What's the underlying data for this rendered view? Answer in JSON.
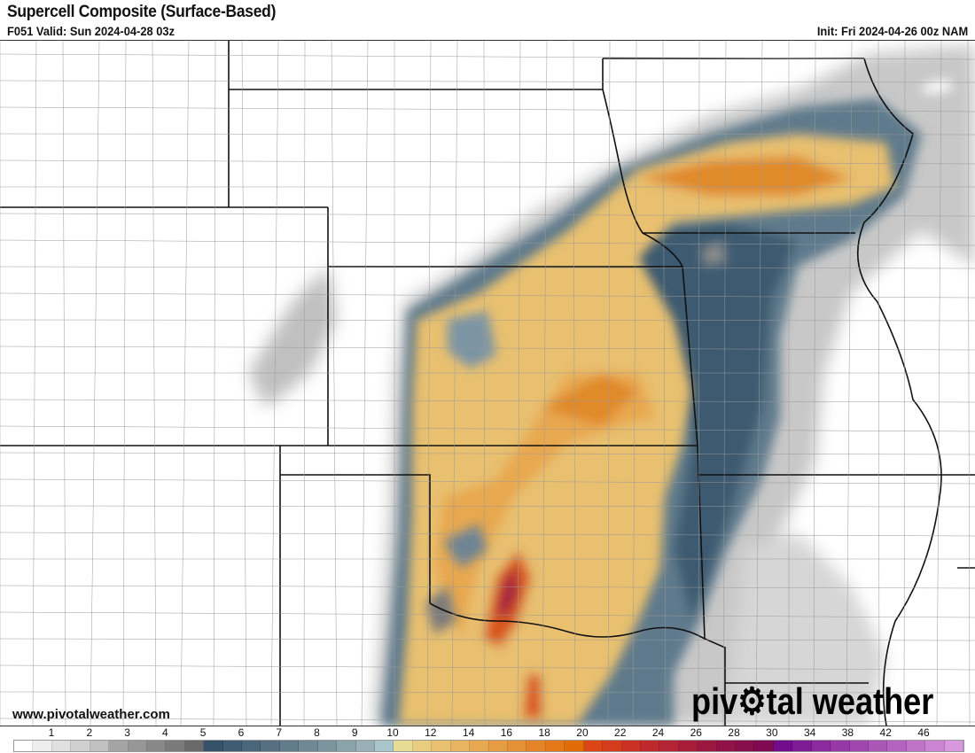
{
  "header": {
    "title": "Supercell Composite (Surface-Based)",
    "valid": "F051 Valid: Sun 2024-04-28 03z",
    "init": "Init: Fri 2024-04-26 00z NAM"
  },
  "watermark": "www.pivotalweather.com",
  "logo": "pivotal weather",
  "colorbar": {
    "labels": [
      "1",
      "2",
      "3",
      "4",
      "5",
      "6",
      "7",
      "8",
      "9",
      "10",
      "12",
      "14",
      "16",
      "18",
      "20",
      "22",
      "24",
      "26",
      "28",
      "30",
      "34",
      "38",
      "42",
      "46"
    ],
    "colors": [
      "#ffffff",
      "#eeeeee",
      "#e0e0e0",
      "#d0d0d0",
      "#c0c0c0",
      "#a4a4a4",
      "#969696",
      "#888888",
      "#7a7a7a",
      "#6a6a6a",
      "#36526a",
      "#405c72",
      "#4a667a",
      "#567082",
      "#627c8c",
      "#6e8894",
      "#7c949e",
      "#8aa2aa",
      "#98b0b6",
      "#a8c6cc",
      "#e8dc94",
      "#e8cc80",
      "#e8c070",
      "#e8b460",
      "#e8a850",
      "#e69c42",
      "#e49034",
      "#e48426",
      "#e27818",
      "#e06c08",
      "#dc4616",
      "#d43c1c",
      "#ca3024",
      "#be2a2c",
      "#b42434",
      "#a81e3a",
      "#9c1840",
      "#901246",
      "#880e4c",
      "#800a52",
      "#720c8c",
      "#7e1c96",
      "#8a2a9e",
      "#9638a6",
      "#a046ae",
      "#aa56b6",
      "#b464c0",
      "#c074c8",
      "#ca84d2",
      "#d898de"
    ]
  }
}
